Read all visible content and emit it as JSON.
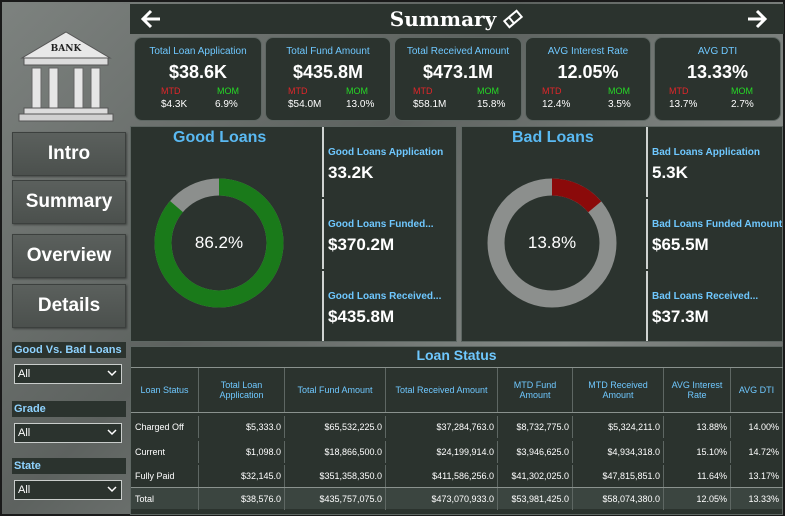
{
  "header": {
    "title": "Summary"
  },
  "logo": {
    "text": "BANK"
  },
  "nav": [
    {
      "label": "Intro"
    },
    {
      "label": "Summary"
    },
    {
      "label": "Overview"
    },
    {
      "label": "Details"
    }
  ],
  "filters": [
    {
      "label": "Good Vs. Bad Loans",
      "value": "All"
    },
    {
      "label": "Grade",
      "value": "All"
    },
    {
      "label": "State",
      "value": "All"
    }
  ],
  "kpis": [
    {
      "title": "Total Loan Application",
      "value": "$38.6K",
      "mtd_label": "MTD",
      "mom_label": "MOM",
      "mtd": "$4.3K",
      "mom": "6.9%"
    },
    {
      "title": "Total Fund Amount",
      "value": "$435.8M",
      "mtd_label": "MTD",
      "mom_label": "MOM",
      "mtd": "$54.0M",
      "mom": "13.0%"
    },
    {
      "title": "Total Received Amount",
      "value": "$473.1M",
      "mtd_label": "MTD",
      "mom_label": "MOM",
      "mtd": "$58.1M",
      "mom": "15.8%"
    },
    {
      "title": "AVG Interest Rate",
      "value": "12.05%",
      "mtd_label": "MTD",
      "mom_label": "MOM",
      "mtd": "12.4%",
      "mom": "3.5%"
    },
    {
      "title": "AVG DTI",
      "value": "13.33%",
      "mtd_label": "MTD",
      "mom_label": "MOM",
      "mtd": "13.7%",
      "mom": "2.7%"
    }
  ],
  "good_loans": {
    "title": "Good Loans",
    "percent_label": "86.2%",
    "percent": 0.862,
    "color": "#1a7a1a",
    "remainder_color": "#8c8f8d",
    "kpis": [
      {
        "title": "Good Loans Application",
        "value": "33.2K"
      },
      {
        "title": "Good Loans Funded...",
        "value": "$370.2M"
      },
      {
        "title": "Good Loans Received...",
        "value": "$435.8M"
      }
    ]
  },
  "bad_loans": {
    "title": "Bad Loans",
    "percent_label": "13.8%",
    "percent": 0.138,
    "color": "#8b0a0a",
    "remainder_color": "#8c8f8d",
    "kpis": [
      {
        "title": "Bad Loans Application",
        "value": "5.3K"
      },
      {
        "title": "Bad Loans Funded Amount",
        "value": "$65.5M"
      },
      {
        "title": "Bad Loans Received...",
        "value": "$37.3M"
      }
    ]
  },
  "loan_status": {
    "title": "Loan Status",
    "columns": [
      "Loan Status",
      "Total Loan Application",
      "Total Fund Amount",
      "Total Received Amount",
      "MTD Fund Amount",
      "MTD Received Amount",
      "AVG Interest Rate",
      "AVG DTI"
    ],
    "rows": [
      [
        "Charged Off",
        "$5,333.0",
        "$65,532,225.0",
        "$37,284,763.0",
        "$8,732,775.0",
        "$5,324,211.0",
        "13.88%",
        "14.00%"
      ],
      [
        "Current",
        "$1,098.0",
        "$18,866,500.0",
        "$24,199,914.0",
        "$3,946,625.0",
        "$4,934,318.0",
        "15.10%",
        "14.72%"
      ],
      [
        "Fully Paid",
        "$32,145.0",
        "$351,358,350.0",
        "$411,586,256.0",
        "$41,302,025.0",
        "$47,815,851.0",
        "11.64%",
        "13.17%"
      ]
    ],
    "total": [
      "Total",
      "$38,576.0",
      "$435,757,075.0",
      "$473,070,933.0",
      "$53,981,425.0",
      "$58,074,380.0",
      "12.05%",
      "13.33%"
    ]
  }
}
